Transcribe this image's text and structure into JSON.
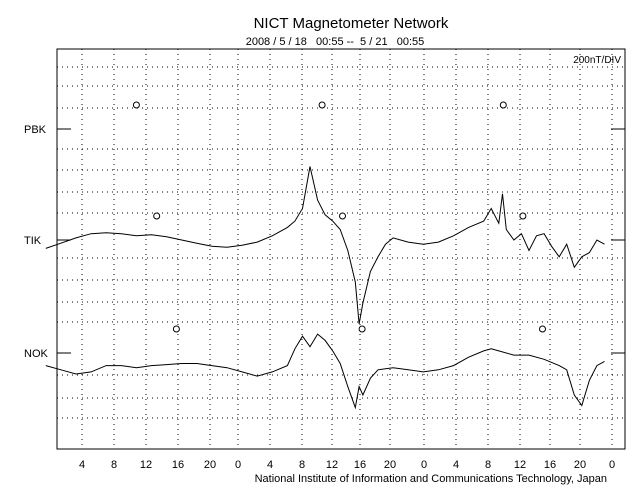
{
  "chart_data": {
    "type": "line",
    "title": "NICT Magnetometer Network",
    "subtitle": "2008 / 5 / 18   00:55 --  5 / 21   00:55",
    "scale_label": "200nT/DIV",
    "footer": "National Institute of Information and Communications Technology, Japan",
    "x_ticks": [
      "4",
      "8",
      "12",
      "16",
      "20",
      "0",
      "4",
      "8",
      "12",
      "16",
      "20",
      "0",
      "4",
      "8",
      "12",
      "16",
      "20",
      "0"
    ],
    "series_labels": [
      "PBK",
      "TIK",
      "NOK"
    ],
    "grid": "dotted",
    "series": [
      {
        "name": "PBK",
        "points": [],
        "circles": [
          12,
          36.6,
          60.6
        ]
      },
      {
        "name": "TIK",
        "points": [
          [
            0,
            -0.4
          ],
          [
            2,
            -0.15
          ],
          [
            4,
            0.1
          ],
          [
            6,
            0.3
          ],
          [
            8,
            0.35
          ],
          [
            10,
            0.3
          ],
          [
            12,
            0.2
          ],
          [
            14,
            0.25
          ],
          [
            16,
            0.15
          ],
          [
            18,
            0.0
          ],
          [
            20,
            -0.15
          ],
          [
            22,
            -0.3
          ],
          [
            24,
            -0.35
          ],
          [
            26,
            -0.25
          ],
          [
            28,
            -0.1
          ],
          [
            30,
            0.2
          ],
          [
            32,
            0.6
          ],
          [
            33,
            0.9
          ],
          [
            34,
            1.5
          ],
          [
            35,
            3.5
          ],
          [
            36,
            1.9
          ],
          [
            37,
            1.2
          ],
          [
            38,
            0.9
          ],
          [
            39,
            0.5
          ],
          [
            40,
            -0.5
          ],
          [
            41,
            -2.0
          ],
          [
            41.5,
            -4.0
          ],
          [
            42,
            -3.0
          ],
          [
            43,
            -1.5
          ],
          [
            44,
            -0.8
          ],
          [
            45,
            -0.2
          ],
          [
            46,
            0.1
          ],
          [
            48,
            -0.1
          ],
          [
            50,
            -0.2
          ],
          [
            52,
            -0.1
          ],
          [
            54,
            0.2
          ],
          [
            56,
            0.6
          ],
          [
            58,
            0.9
          ],
          [
            59,
            1.5
          ],
          [
            60,
            0.8
          ],
          [
            60.5,
            2.2
          ],
          [
            61,
            0.5
          ],
          [
            62,
            0.0
          ],
          [
            63,
            0.3
          ],
          [
            64,
            -0.5
          ],
          [
            65,
            0.2
          ],
          [
            66,
            0.3
          ],
          [
            67,
            -0.3
          ],
          [
            68,
            -0.8
          ],
          [
            69,
            -0.2
          ],
          [
            70,
            -1.3
          ],
          [
            71,
            -0.8
          ],
          [
            72,
            -0.6
          ],
          [
            73,
            0.0
          ],
          [
            74,
            -0.2
          ]
        ],
        "circles": [
          14.7,
          39.3,
          63.2
        ]
      },
      {
        "name": "NOK",
        "points": [
          [
            0,
            -0.6
          ],
          [
            2,
            -0.8
          ],
          [
            4,
            -1.0
          ],
          [
            6,
            -0.9
          ],
          [
            8,
            -0.6
          ],
          [
            10,
            -0.6
          ],
          [
            12,
            -0.7
          ],
          [
            14,
            -0.6
          ],
          [
            16,
            -0.55
          ],
          [
            18,
            -0.5
          ],
          [
            20,
            -0.5
          ],
          [
            22,
            -0.6
          ],
          [
            24,
            -0.7
          ],
          [
            26,
            -0.9
          ],
          [
            28,
            -1.1
          ],
          [
            30,
            -0.9
          ],
          [
            32,
            -0.6
          ],
          [
            33,
            0.2
          ],
          [
            34,
            0.8
          ],
          [
            35,
            0.3
          ],
          [
            36,
            0.9
          ],
          [
            37,
            0.6
          ],
          [
            38,
            0.1
          ],
          [
            39,
            -0.5
          ],
          [
            40,
            -1.6
          ],
          [
            41,
            -2.6
          ],
          [
            41.5,
            -1.6
          ],
          [
            42,
            -2.0
          ],
          [
            43,
            -1.2
          ],
          [
            44,
            -0.8
          ],
          [
            46,
            -0.7
          ],
          [
            48,
            -0.8
          ],
          [
            50,
            -0.9
          ],
          [
            52,
            -0.8
          ],
          [
            54,
            -0.6
          ],
          [
            56,
            -0.2
          ],
          [
            58,
            0.1
          ],
          [
            59,
            0.2
          ],
          [
            60,
            0.1
          ],
          [
            62,
            -0.1
          ],
          [
            64,
            -0.1
          ],
          [
            66,
            -0.3
          ],
          [
            68,
            -0.6
          ],
          [
            69,
            -0.8
          ],
          [
            70,
            -2.0
          ],
          [
            71,
            -2.5
          ],
          [
            72,
            -1.3
          ],
          [
            73,
            -0.6
          ],
          [
            74,
            -0.4
          ]
        ],
        "circles": [
          17.3,
          41.9,
          65.8
        ]
      }
    ]
  }
}
